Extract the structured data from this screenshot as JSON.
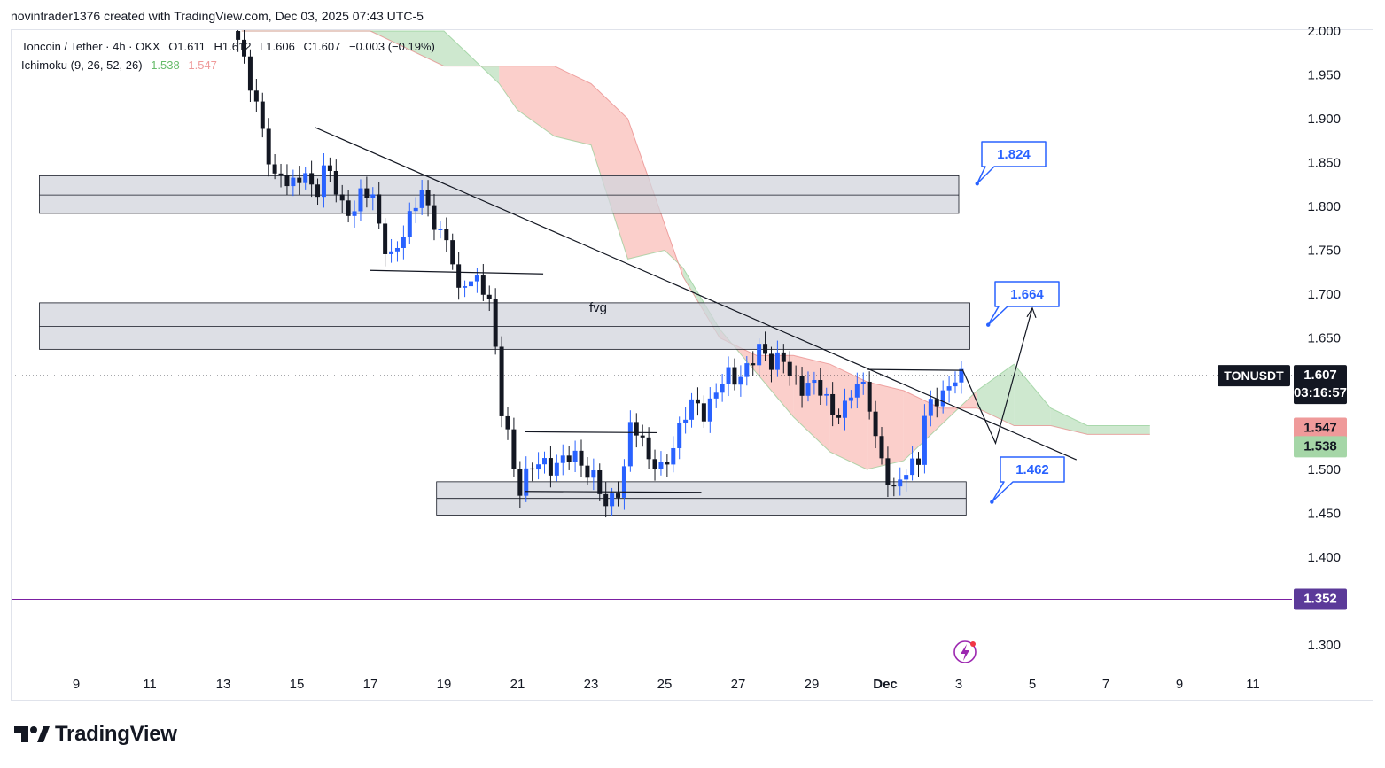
{
  "header": {
    "caption": "novintrader1376 created with TradingView.com, Dec 03, 2025 07:43 UTC-5"
  },
  "legend": {
    "symbol_line": "Toncoin / Tether · 4h · OKX",
    "open": "O1.611",
    "high": "H1.612",
    "low": "L1.606",
    "close": "C1.607",
    "change": "−0.003 (−0.19%)",
    "indicator_name": "Ichimoku (9, 26, 52, 26)",
    "indicator_value_1": "1.538",
    "indicator_value_2": "1.547"
  },
  "colors": {
    "up": "#2962ff",
    "down": "#131722",
    "cloud_bear": "#f7a8a1",
    "cloud_bull": "#a5d6a7",
    "zone_fill": "#d1d4dc",
    "callout": "#2962ff",
    "purple_line": "#7b1fa2",
    "price_tag": "#131722",
    "bear_tag": "#ef9a9a",
    "bull_tag": "#a5d6a7",
    "purple_tag": "#5b3a99"
  },
  "price_tags": {
    "symbol": "TONUSDT",
    "last": "1.607",
    "countdown": "03:16:57",
    "span_a": "1.547",
    "span_b": "1.538",
    "level": "1.352"
  },
  "annotations": {
    "fvg_label": "fvg",
    "target_1": "1.824",
    "target_2": "1.664",
    "target_3": "1.462"
  },
  "footer": {
    "brand": "TradingView"
  },
  "chart_data": {
    "type": "candlestick",
    "title": "Toncoin / Tether · 4h · OKX",
    "ylim": [
      1.27,
      2.0
    ],
    "y_ticks": [
      "2.000",
      "1.950",
      "1.900",
      "1.850",
      "1.800",
      "1.750",
      "1.700",
      "1.650",
      "1.600",
      "1.550",
      "1.500",
      "1.450",
      "1.400",
      "1.350",
      "1.300"
    ],
    "x_ticks": [
      "9",
      "11",
      "13",
      "15",
      "17",
      "19",
      "21",
      "23",
      "25",
      "27",
      "29",
      "Dec",
      "3",
      "5",
      "7",
      "9",
      "11"
    ],
    "x_tick_days": [
      9,
      11,
      13,
      15,
      17,
      19,
      21,
      23,
      25,
      27,
      29,
      31,
      33,
      35,
      37,
      39,
      41
    ],
    "candles_day_start": 13.4,
    "candle_step_days": 0.1667,
    "anchor_prices": [
      [
        13.4,
        1.99
      ],
      [
        13.6,
        1.96
      ],
      [
        13.8,
        1.93
      ],
      [
        14.0,
        1.9
      ],
      [
        14.2,
        1.86
      ],
      [
        14.4,
        1.83
      ],
      [
        14.6,
        1.84
      ],
      [
        14.8,
        1.82
      ],
      [
        15.0,
        1.83
      ],
      [
        15.2,
        1.84
      ],
      [
        15.5,
        1.81
      ],
      [
        15.8,
        1.85
      ],
      [
        16.0,
        1.83
      ],
      [
        16.2,
        1.8
      ],
      [
        16.5,
        1.79
      ],
      [
        16.8,
        1.82
      ],
      [
        17.1,
        1.81
      ],
      [
        17.3,
        1.76
      ],
      [
        17.6,
        1.74
      ],
      [
        17.9,
        1.77
      ],
      [
        18.2,
        1.8
      ],
      [
        18.4,
        1.82
      ],
      [
        18.6,
        1.79
      ],
      [
        18.9,
        1.77
      ],
      [
        19.2,
        1.75
      ],
      [
        19.4,
        1.7
      ],
      [
        19.7,
        1.72
      ],
      [
        20.0,
        1.71
      ],
      [
        20.3,
        1.69
      ],
      [
        20.5,
        1.58
      ],
      [
        20.8,
        1.53
      ],
      [
        21.0,
        1.47
      ],
      [
        21.3,
        1.5
      ],
      [
        21.6,
        1.51
      ],
      [
        21.9,
        1.5
      ],
      [
        22.2,
        1.51
      ],
      [
        22.5,
        1.52
      ],
      [
        22.8,
        1.5
      ],
      [
        23.1,
        1.49
      ],
      [
        23.4,
        1.46
      ],
      [
        23.7,
        1.47
      ],
      [
        23.9,
        1.5
      ],
      [
        24.1,
        1.56
      ],
      [
        24.3,
        1.54
      ],
      [
        24.6,
        1.51
      ],
      [
        24.9,
        1.5
      ],
      [
        25.2,
        1.52
      ],
      [
        25.5,
        1.56
      ],
      [
        25.8,
        1.58
      ],
      [
        26.1,
        1.56
      ],
      [
        26.4,
        1.59
      ],
      [
        26.7,
        1.61
      ],
      [
        27.0,
        1.6
      ],
      [
        27.3,
        1.62
      ],
      [
        27.6,
        1.64
      ],
      [
        27.9,
        1.62
      ],
      [
        28.2,
        1.63
      ],
      [
        28.4,
        1.61
      ],
      [
        28.7,
        1.59
      ],
      [
        29.0,
        1.6
      ],
      [
        29.3,
        1.59
      ],
      [
        29.6,
        1.56
      ],
      [
        29.9,
        1.57
      ],
      [
        30.2,
        1.6
      ],
      [
        30.5,
        1.59
      ],
      [
        30.8,
        1.52
      ],
      [
        31.0,
        1.5
      ],
      [
        31.2,
        1.47
      ],
      [
        31.4,
        1.49
      ],
      [
        31.6,
        1.5
      ],
      [
        31.9,
        1.51
      ],
      [
        32.1,
        1.57
      ],
      [
        32.4,
        1.58
      ],
      [
        32.7,
        1.59
      ],
      [
        32.95,
        1.61
      ],
      [
        33.05,
        1.607
      ]
    ],
    "ichimoku_cloud": {
      "kumo_days": [
        13.5,
        15.0,
        17.0,
        19.0,
        20.5,
        21.0,
        22.0,
        23.0,
        24.0,
        25.0,
        25.5,
        26.5,
        27.5,
        28.5,
        29.5,
        30.5,
        31.5,
        32.5,
        33.5,
        34.5,
        35.5,
        36.5,
        37.5,
        38.2
      ],
      "span_a": [
        2.0,
        2.0,
        2.0,
        2.0,
        1.94,
        1.91,
        1.88,
        1.87,
        1.74,
        1.75,
        1.73,
        1.66,
        1.61,
        1.56,
        1.52,
        1.5,
        1.51,
        1.55,
        1.59,
        1.62,
        1.57,
        1.55,
        1.55,
        1.55
      ],
      "span_b": [
        2.0,
        2.0,
        2.0,
        1.96,
        1.96,
        1.96,
        1.96,
        1.94,
        1.9,
        1.78,
        1.72,
        1.65,
        1.63,
        1.63,
        1.62,
        1.6,
        1.59,
        1.57,
        1.57,
        1.55,
        1.55,
        1.54,
        1.54,
        1.54
      ]
    },
    "zones": [
      {
        "name": "upper-zone",
        "day_from": 8.0,
        "day_to": 33.0,
        "top": 1.835,
        "bottom": 1.792,
        "mid": 1.813
      },
      {
        "name": "fvg-zone",
        "day_from": 8.0,
        "day_to": 33.3,
        "top": 1.69,
        "bottom": 1.637,
        "mid": 1.663
      },
      {
        "name": "demand-zone",
        "day_from": 18.8,
        "day_to": 33.2,
        "top": 1.486,
        "bottom": 1.448,
        "mid": 1.467
      }
    ],
    "trendline": {
      "from": [
        15.5,
        1.89
      ],
      "to": [
        36.2,
        1.511
      ]
    },
    "support_lines": [
      {
        "from": [
          17.0,
          1.727
        ],
        "to": [
          21.7,
          1.723
        ]
      },
      {
        "from": [
          21.2,
          1.543
        ],
        "to": [
          24.8,
          1.542
        ]
      },
      {
        "from": [
          21.2,
          1.475
        ],
        "to": [
          26.0,
          1.474
        ]
      },
      {
        "from": [
          30.5,
          1.614
        ],
        "to": [
          33.1,
          1.613
        ]
      }
    ],
    "projection_path": [
      [
        33.1,
        1.614
      ],
      [
        34.0,
        1.53
      ],
      [
        35.0,
        1.684
      ]
    ],
    "last_price": 1.607,
    "horizontal_level": 1.352,
    "callouts": [
      {
        "label": "1.824",
        "anchor": [
          33.5,
          1.826
        ]
      },
      {
        "label": "1.664",
        "anchor": [
          33.8,
          1.665
        ]
      },
      {
        "label": "1.462",
        "anchor": [
          33.9,
          1.463
        ]
      }
    ]
  }
}
